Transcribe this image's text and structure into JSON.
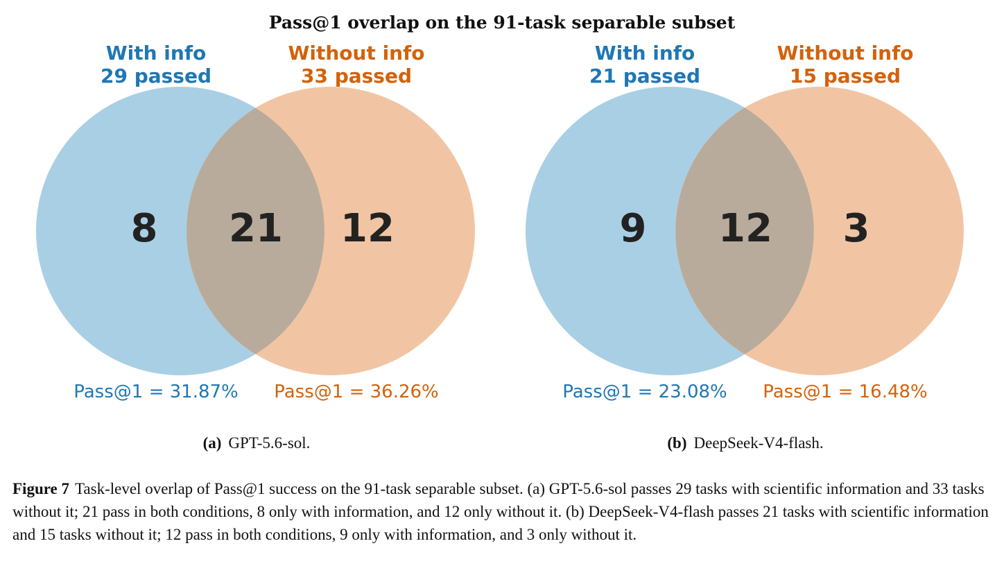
{
  "figure_title": "Pass@1 overlap on the 91-task separable subset",
  "colors": {
    "with_info": "#1f77b4",
    "without_info": "#d4620a",
    "with_fill": "#a9cfe4",
    "without_fill": "#f1c5a4",
    "overlap_fill": "#b9ab9b"
  },
  "chart_data": [
    {
      "type": "venn",
      "sets": [
        {
          "name": "With info",
          "size_label": "29 passed",
          "size": 29,
          "rate": "Pass@1 = 31.87%"
        },
        {
          "name": "Without info",
          "size_label": "33 passed",
          "size": 33,
          "rate": "Pass@1 = 36.26%"
        }
      ],
      "regions": {
        "only_with": 8,
        "both": 21,
        "only_without": 12
      },
      "subcaption_tag": "(a)",
      "subcaption": "GPT-5.6-sol."
    },
    {
      "type": "venn",
      "sets": [
        {
          "name": "With info",
          "size_label": "21 passed",
          "size": 21,
          "rate": "Pass@1 = 23.08%"
        },
        {
          "name": "Without info",
          "size_label": "15 passed",
          "size": 15,
          "rate": "Pass@1 = 16.48%"
        }
      ],
      "regions": {
        "only_with": 9,
        "both": 12,
        "only_without": 3
      },
      "subcaption_tag": "(b)",
      "subcaption": "DeepSeek-V4-flash."
    }
  ],
  "caption": {
    "label": "Figure 7",
    "text": "Task-level overlap of Pass@1 success on the 91-task separable subset. (a) GPT-5.6-sol passes 29 tasks with scientific information and 33 tasks without it; 21 pass in both conditions, 8 only with information, and 12 only without it. (b) DeepSeek-V4-flash passes 21 tasks with scientific information and 15 tasks without it; 12 pass in both conditions, 9 only with information, and 3 only without it."
  }
}
